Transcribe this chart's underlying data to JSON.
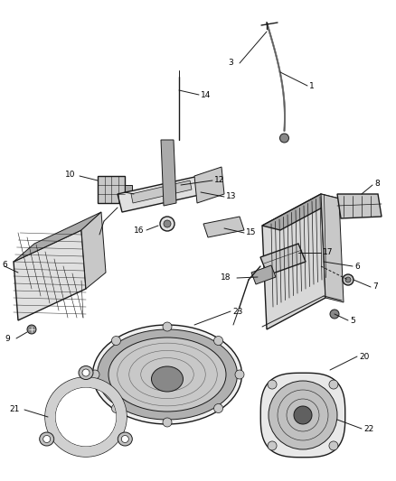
{
  "background_color": "#ffffff",
  "figsize": [
    4.38,
    5.33
  ],
  "dpi": 100,
  "line_color": "#1a1a1a",
  "label_fontsize": 6.5,
  "label_color": "#000000",
  "gray_fill": "#c8c8c8",
  "gray_dark": "#888888",
  "gray_med": "#aaaaaa",
  "gray_light": "#e0e0e0",
  "gray_stripe": "#b0b0b0"
}
